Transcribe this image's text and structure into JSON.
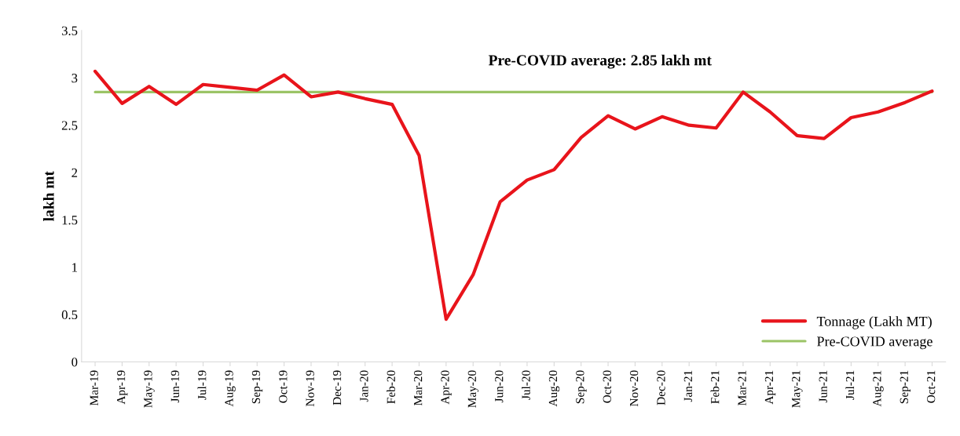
{
  "chart_data": {
    "type": "line",
    "ylabel": "lakh mt",
    "categories": [
      "Mar-19",
      "Apr-19",
      "May-19",
      "Jun-19",
      "Jul-19",
      "Aug-19",
      "Sep-19",
      "Oct-19",
      "Nov-19",
      "Dec-19",
      "Jan-20",
      "Feb-20",
      "Mar-20",
      "Apr-20",
      "May-20",
      "Jun-20",
      "Jul-20",
      "Aug-20",
      "Sep-20",
      "Oct-20",
      "Nov-20",
      "Dec-20",
      "Jan-21",
      "Feb-21",
      "Mar-21",
      "Apr-21",
      "May-21",
      "Jun-21",
      "Jul-21",
      "Aug-21",
      "Sep-21",
      "Oct-21"
    ],
    "series": [
      {
        "name": "Tonnage (Lakh MT)",
        "color": "#e8141b",
        "values": [
          3.07,
          2.73,
          2.91,
          2.72,
          2.93,
          2.9,
          2.87,
          3.03,
          2.8,
          2.85,
          2.78,
          2.72,
          2.18,
          0.45,
          0.92,
          1.69,
          1.92,
          2.03,
          2.37,
          2.6,
          2.46,
          2.59,
          2.5,
          2.47,
          2.85,
          2.64,
          2.39,
          2.36,
          2.58,
          2.64,
          2.74,
          2.86
        ]
      },
      {
        "name": "Pre-COVID average",
        "color": "#9bc466",
        "values": [
          2.85,
          2.85,
          2.85,
          2.85,
          2.85,
          2.85,
          2.85,
          2.85,
          2.85,
          2.85,
          2.85,
          2.85,
          2.85,
          2.85,
          2.85,
          2.85,
          2.85,
          2.85,
          2.85,
          2.85,
          2.85,
          2.85,
          2.85,
          2.85,
          2.85,
          2.85,
          2.85,
          2.85,
          2.85,
          2.85,
          2.85,
          2.85
        ]
      }
    ],
    "annotations": [
      "Pre-COVID average: 2.85 lakh mt"
    ],
    "ylim": [
      0,
      3.5
    ],
    "yticks": [
      0,
      0.5,
      1,
      1.5,
      2,
      2.5,
      3,
      3.5
    ],
    "legend": "bottom right",
    "grid": false,
    "marker": "none",
    "line_style": "solid"
  }
}
